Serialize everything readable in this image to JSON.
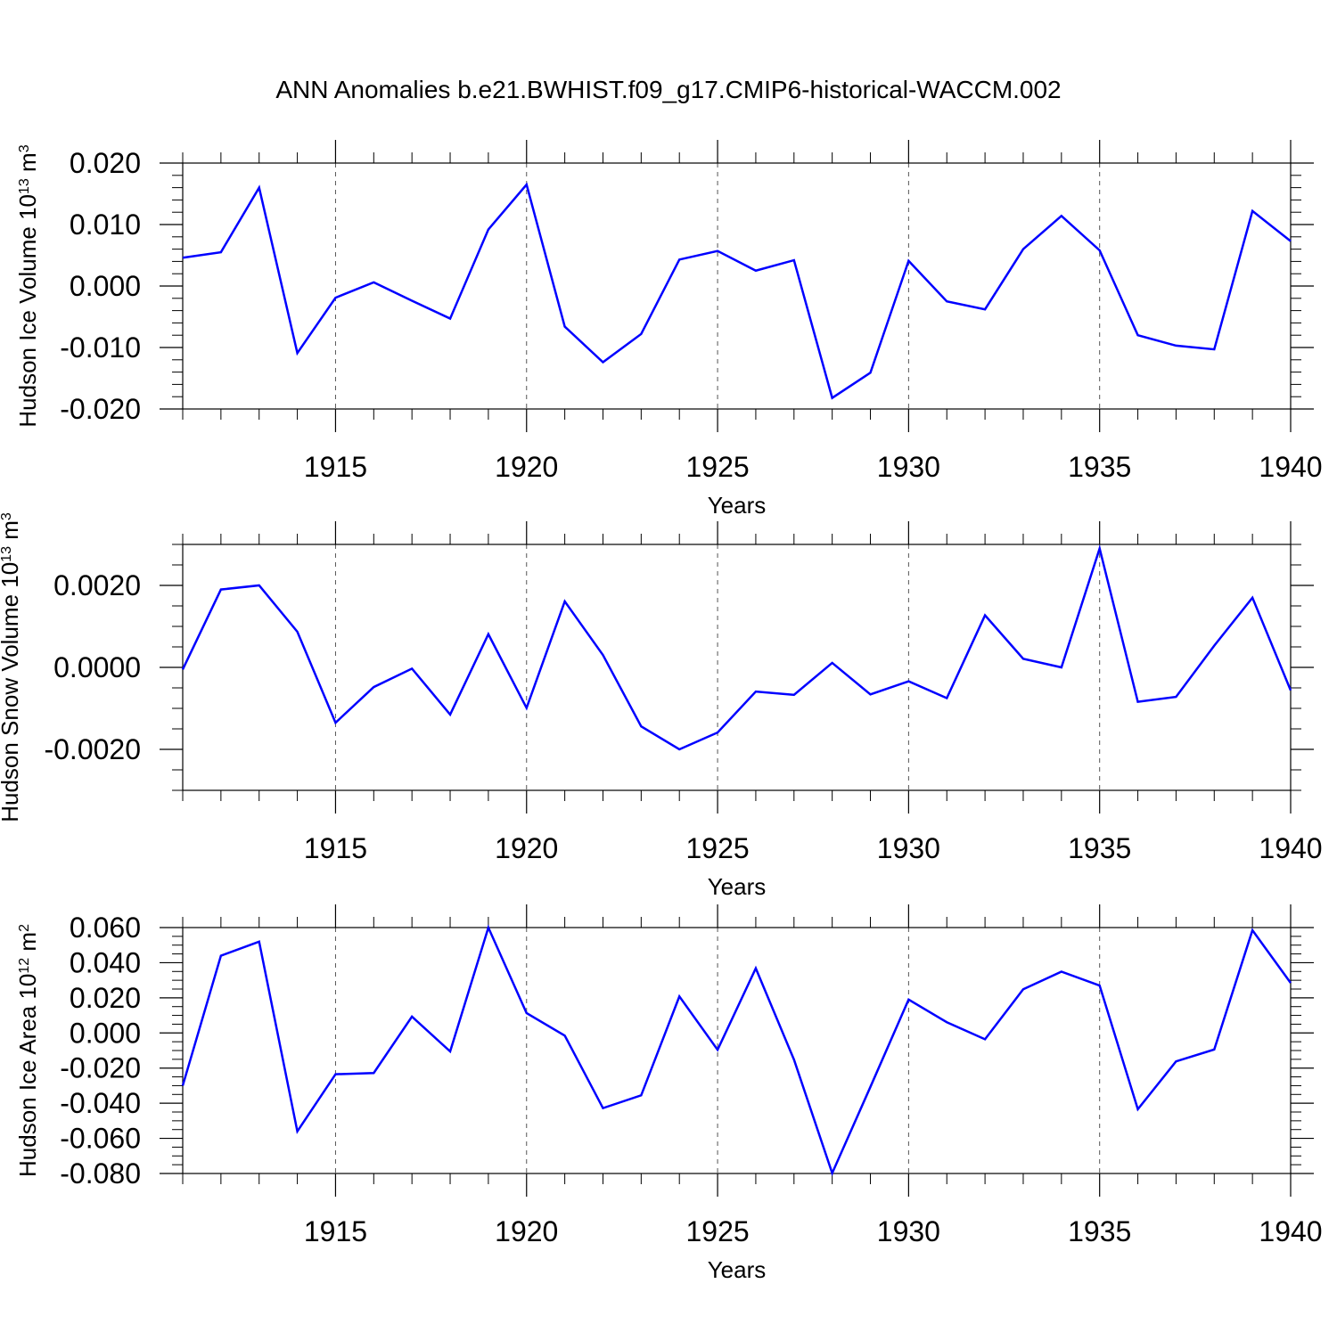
{
  "title": "ANN Anomalies b.e21.BWHIST.f09_g17.CMIP6-historical-WACCM.002",
  "colors": {
    "series": "#0000ff",
    "axes": "#000000",
    "grid": "#555555"
  },
  "chart_data": [
    {
      "type": "line",
      "ylabel": {
        "text": "Hudson Ice Volume 10",
        "exp": "13",
        "unit": " m",
        "unit_exp": "3"
      },
      "xlabel": "Years",
      "x": [
        1911,
        1912,
        1913,
        1914,
        1915,
        1916,
        1917,
        1918,
        1919,
        1920,
        1921,
        1922,
        1923,
        1924,
        1925,
        1926,
        1927,
        1928,
        1929,
        1930,
        1931,
        1932,
        1933,
        1934,
        1935,
        1936,
        1937,
        1938,
        1939,
        1940
      ],
      "values": [
        0.0046,
        0.0055,
        0.016,
        -0.0109,
        -0.0019,
        0.0006,
        -0.0024,
        -0.0053,
        0.0092,
        0.0165,
        -0.0066,
        -0.0124,
        -0.0078,
        0.0043,
        0.0057,
        0.0025,
        0.0042,
        -0.0182,
        -0.0141,
        0.0041,
        -0.0025,
        -0.0038,
        0.006,
        0.0114,
        0.0058,
        -0.008,
        -0.0097,
        -0.0103,
        0.0122,
        0.0073
      ],
      "xlim": [
        1911,
        1940
      ],
      "ylim": [
        -0.02,
        0.02
      ],
      "yticks": [
        -0.02,
        -0.01,
        0.0,
        0.01,
        0.02
      ],
      "ytick_labels": [
        "-0.020",
        "-0.010",
        "0.000",
        "0.010",
        "0.020"
      ],
      "xticks": [
        1915,
        1920,
        1925,
        1930,
        1935,
        1940
      ],
      "xtick_labels": [
        "1915",
        "1920",
        "1925",
        "1930",
        "1935",
        "1940"
      ],
      "yminor_step": 0.002,
      "grid": "vertical dashed at major x ticks"
    },
    {
      "type": "line",
      "ylabel": {
        "text": "Hudson Snow Volume 10",
        "exp": "13",
        "unit": " m",
        "unit_exp": "3"
      },
      "xlabel": "Years",
      "x": [
        1911,
        1912,
        1913,
        1914,
        1915,
        1916,
        1917,
        1918,
        1919,
        1920,
        1921,
        1922,
        1923,
        1924,
        1925,
        1926,
        1927,
        1928,
        1929,
        1930,
        1931,
        1932,
        1933,
        1934,
        1935,
        1936,
        1937,
        1938,
        1939,
        1940
      ],
      "values": [
        -5e-05,
        0.0019,
        0.002,
        0.00087,
        -0.00135,
        -0.00048,
        -3e-05,
        -0.00115,
        0.00081,
        -0.00099,
        0.00161,
        0.0003,
        -0.00144,
        -0.002,
        -0.00159,
        -0.00059,
        -0.00067,
        0.00011,
        -0.00066,
        -0.00034,
        -0.00075,
        0.00127,
        0.00021,
        0.0,
        0.0029,
        -0.00084,
        -0.00072,
        0.00053,
        0.0017,
        -0.00056
      ],
      "xlim": [
        1911,
        1940
      ],
      "ylim": [
        -0.003,
        0.003
      ],
      "yticks": [
        -0.002,
        0.0,
        0.002
      ],
      "ytick_labels": [
        "-0.0020",
        "0.0000",
        "0.0020"
      ],
      "xticks": [
        1915,
        1920,
        1925,
        1930,
        1935,
        1940
      ],
      "xtick_labels": [
        "1915",
        "1920",
        "1925",
        "1930",
        "1935",
        "1940"
      ],
      "yminor_step": 0.0005,
      "grid": "vertical dashed at major x ticks"
    },
    {
      "type": "line",
      "ylabel": {
        "text": "Hudson Ice Area 10",
        "exp": "12",
        "unit": " m",
        "unit_exp": "2"
      },
      "xlabel": "Years",
      "x": [
        1911,
        1912,
        1913,
        1914,
        1915,
        1916,
        1917,
        1918,
        1919,
        1920,
        1921,
        1922,
        1923,
        1924,
        1925,
        1926,
        1927,
        1928,
        1929,
        1930,
        1931,
        1932,
        1933,
        1934,
        1935,
        1936,
        1937,
        1938,
        1939,
        1940
      ],
      "values": [
        -0.03,
        0.044,
        0.052,
        -0.056,
        -0.0235,
        -0.0228,
        0.0093,
        -0.0105,
        0.06,
        0.0113,
        -0.0015,
        -0.0428,
        -0.0355,
        0.0208,
        -0.0096,
        0.0368,
        -0.0152,
        -0.0798,
        -0.0307,
        0.019,
        0.0061,
        -0.0036,
        0.0249,
        0.0349,
        0.027,
        -0.0434,
        -0.0162,
        -0.0094,
        0.0585,
        0.0285
      ],
      "xlim": [
        1911,
        1940
      ],
      "ylim": [
        -0.08,
        0.06
      ],
      "yticks": [
        -0.08,
        -0.06,
        -0.04,
        -0.02,
        0.0,
        0.02,
        0.04,
        0.06
      ],
      "ytick_labels": [
        "-0.080",
        "-0.060",
        "-0.040",
        "-0.020",
        "0.000",
        "0.020",
        "0.040",
        "0.060"
      ],
      "xticks": [
        1915,
        1920,
        1925,
        1930,
        1935,
        1940
      ],
      "xtick_labels": [
        "1915",
        "1920",
        "1925",
        "1930",
        "1935",
        "1940"
      ],
      "yminor_step": 0.005,
      "grid": "vertical dashed at major x ticks"
    }
  ]
}
